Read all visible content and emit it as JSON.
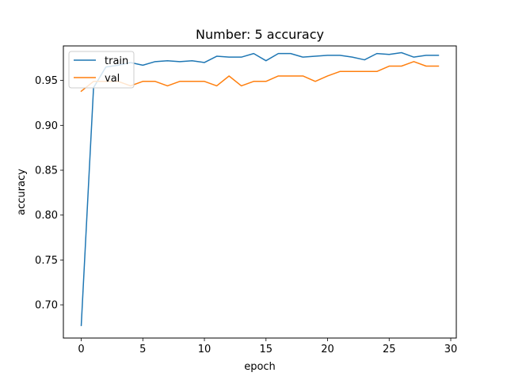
{
  "chart_data": {
    "type": "line",
    "title": "Number: 5 accuracy",
    "xlabel": "epoch",
    "ylabel": "accuracy",
    "xlim": [
      -1.45,
      30.45
    ],
    "ylim": [
      0.663,
      0.9885
    ],
    "xticks": [
      0,
      5,
      10,
      15,
      20,
      25,
      30
    ],
    "yticks": [
      0.7,
      0.75,
      0.8,
      0.85,
      0.9,
      0.95
    ],
    "ytick_labels": [
      "0.70",
      "0.75",
      "0.80",
      "0.85",
      "0.90",
      "0.95"
    ],
    "grid": false,
    "legend_position": "top-left",
    "x": [
      0,
      1,
      2,
      3,
      4,
      5,
      6,
      7,
      8,
      9,
      10,
      11,
      12,
      13,
      14,
      15,
      16,
      17,
      18,
      19,
      20,
      21,
      22,
      23,
      24,
      25,
      26,
      27,
      28,
      29
    ],
    "series": [
      {
        "name": "train",
        "color": "#1f77b4",
        "values": [
          0.677,
          0.942,
          0.965,
          0.967,
          0.97,
          0.967,
          0.971,
          0.972,
          0.971,
          0.972,
          0.97,
          0.977,
          0.976,
          0.976,
          0.98,
          0.972,
          0.98,
          0.98,
          0.976,
          0.977,
          0.978,
          0.978,
          0.976,
          0.973,
          0.98,
          0.979,
          0.981,
          0.976,
          0.978,
          0.978
        ]
      },
      {
        "name": "val",
        "color": "#ff7f0e",
        "values": [
          0.938,
          0.949,
          0.949,
          0.949,
          0.944,
          0.949,
          0.949,
          0.944,
          0.949,
          0.949,
          0.949,
          0.944,
          0.955,
          0.944,
          0.949,
          0.949,
          0.955,
          0.955,
          0.955,
          0.949,
          0.955,
          0.96,
          0.96,
          0.96,
          0.96,
          0.966,
          0.966,
          0.971,
          0.966,
          0.966
        ]
      }
    ]
  }
}
